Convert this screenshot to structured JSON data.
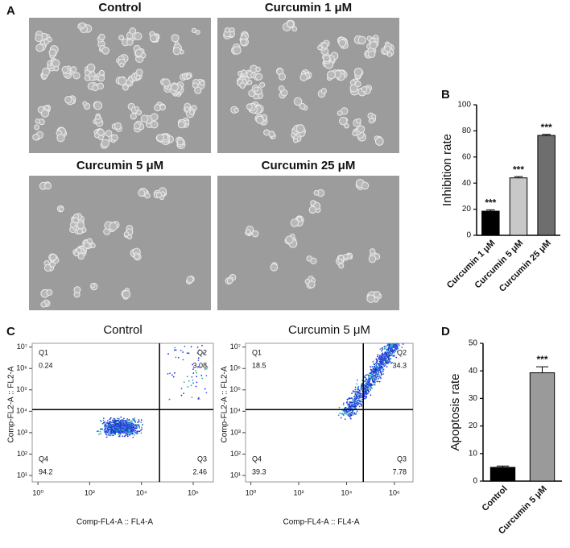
{
  "panel_labels": [
    "A",
    "B",
    "C",
    "D"
  ],
  "micrographs": {
    "titles": [
      "Control",
      "Curcumin 1 μM",
      "Curcumin 5 μM",
      "Curcumin 25 μM"
    ]
  },
  "chart_data": [
    {
      "type": "bar",
      "ylabel": "Inhibition rate",
      "categories": [
        "Curcumin 1 μM",
        "Curcumin 5 μM",
        "Curcumin 25 μM"
      ],
      "values": [
        18.5,
        44,
        76.5
      ],
      "errors": [
        1,
        1,
        0.8
      ],
      "annotations": [
        "***",
        "***",
        "***"
      ],
      "colors": [
        "#000000",
        "#c8c8c8",
        "#6e6e6e"
      ],
      "ylim": [
        0,
        100
      ],
      "yticks": [
        0,
        20,
        40,
        60,
        80,
        100
      ]
    },
    {
      "type": "flow",
      "title": "Control",
      "xlabel": "Comp-FL4-A :: FL4-A",
      "ylabel": "Comp-FL2-A :: FL2-A",
      "log": true,
      "xlim": [
        0.6,
        6000000
      ],
      "ylim": [
        5,
        15000000
      ],
      "xticks": [
        {
          "value": 1,
          "label": "10⁰"
        },
        {
          "value": 100,
          "label": "10²"
        },
        {
          "value": 10000,
          "label": "10⁴"
        },
        {
          "value": 1000000,
          "label": "10⁶"
        }
      ],
      "yticks": [
        {
          "value": 10,
          "label": "10¹"
        },
        {
          "value": 100,
          "label": "10²"
        },
        {
          "value": 1000,
          "label": "10³"
        },
        {
          "value": 10000,
          "label": "10⁴"
        },
        {
          "value": 100000,
          "label": "10⁵"
        },
        {
          "value": 1000000,
          "label": "10⁶"
        },
        {
          "value": 10000000,
          "label": "10⁷"
        }
      ],
      "gates": {
        "x": 50000,
        "y": 12000
      },
      "quadrants": [
        {
          "name": "Q1",
          "value": 0.24
        },
        {
          "name": "Q2",
          "value": 3.08
        },
        {
          "name": "Q3",
          "value": 2.46
        },
        {
          "name": "Q4",
          "value": 94.2
        }
      ]
    },
    {
      "type": "flow",
      "title": "Curcumin 5 μM",
      "xlabel": "Comp-FL4-A :: FL4-A",
      "ylabel": "Comp-FL2-A :: FL2-A",
      "log": true,
      "xlim": [
        0.6,
        6000000
      ],
      "ylim": [
        5,
        15000000
      ],
      "xticks": [
        {
          "value": 1,
          "label": "10⁰"
        },
        {
          "value": 100,
          "label": "10²"
        },
        {
          "value": 10000,
          "label": "10⁴"
        },
        {
          "value": 1000000,
          "label": "10⁶"
        }
      ],
      "yticks": [
        {
          "value": 10,
          "label": "10¹"
        },
        {
          "value": 100,
          "label": "10²"
        },
        {
          "value": 1000,
          "label": "10³"
        },
        {
          "value": 10000,
          "label": "10⁴"
        },
        {
          "value": 100000,
          "label": "10⁵"
        },
        {
          "value": 1000000,
          "label": "10⁶"
        },
        {
          "value": 10000000,
          "label": "10⁷"
        }
      ],
      "gates": {
        "x": 50000,
        "y": 12000
      },
      "quadrants": [
        {
          "name": "Q1",
          "value": 18.5
        },
        {
          "name": "Q2",
          "value": 34.3
        },
        {
          "name": "Q3",
          "value": 7.78
        },
        {
          "name": "Q4",
          "value": 39.3
        }
      ]
    },
    {
      "type": "bar",
      "ylabel": "Apoptosis rate",
      "categories": [
        "Control",
        "Curcumin 5 μM"
      ],
      "values": [
        5,
        39.3
      ],
      "errors": [
        0.5,
        2.2
      ],
      "annotations": [
        null,
        "***"
      ],
      "colors": [
        "#000000",
        "#9a9a9a"
      ],
      "ylim": [
        0,
        50
      ],
      "yticks": [
        0,
        10,
        20,
        30,
        40,
        50
      ]
    }
  ]
}
